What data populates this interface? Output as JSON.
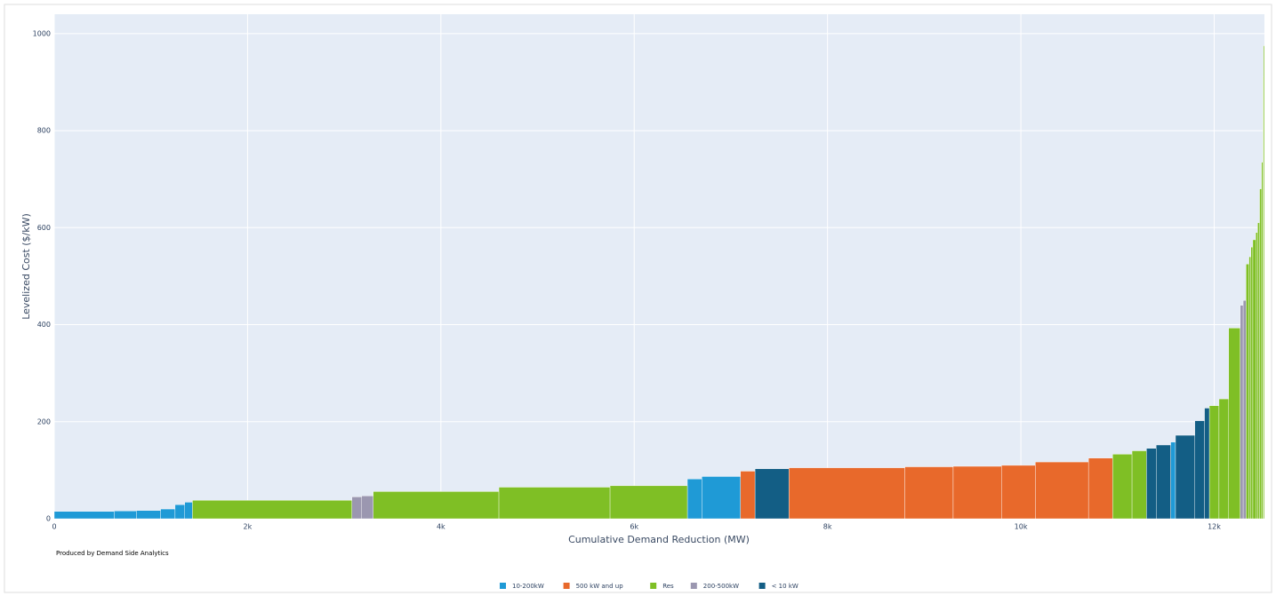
{
  "chart_data": {
    "type": "bar",
    "x_label": "Cumulative Demand Reduction (MW)",
    "y_label": "Levelized Cost ($/kW)",
    "note": "Produced by Demand Side Analytics",
    "xlim": [
      0,
      12520
    ],
    "ylim": [
      0,
      1040
    ],
    "xticks": [
      0,
      {
        "value": 2000,
        "label": "2k"
      },
      {
        "value": 4000,
        "label": "4k"
      },
      {
        "value": 6000,
        "label": "6k"
      },
      {
        "value": 8000,
        "label": "8k"
      },
      {
        "value": 10000,
        "label": "10k"
      },
      {
        "value": 12000,
        "label": "12k"
      }
    ],
    "yticks": [
      0,
      200,
      400,
      600,
      800,
      1000
    ],
    "grid": true,
    "legend": "bottom",
    "series": [
      {
        "name": "10-200kW",
        "color": "#1f9ad6",
        "x0": [
          0,
          620,
          850,
          1100,
          1250,
          1350,
          6550,
          6700,
          11550
        ],
        "x1": [
          620,
          850,
          1100,
          1250,
          1350,
          1430,
          6700,
          7100,
          11600
        ],
        "values": [
          15,
          16,
          17,
          20,
          29,
          34,
          82,
          87,
          158
        ]
      },
      {
        "name": "500 kW and up",
        "color": "#e8692b",
        "x0": [
          7100,
          7600,
          8800,
          9300,
          9800,
          10150,
          10700
        ],
        "x1": [
          7250,
          8800,
          9300,
          9800,
          10150,
          10700,
          10950
        ],
        "values": [
          98,
          105,
          107,
          108,
          110,
          117,
          125
        ]
      },
      {
        "name": "Res",
        "color": "#7fbf25",
        "x0": [
          1430,
          3300,
          4600,
          5750,
          10950,
          11150,
          11950,
          12050,
          12150,
          12330,
          12360,
          12380,
          12400,
          12430,
          12450,
          12470,
          12490,
          12505,
          12510
        ],
        "x1": [
          3080,
          4600,
          5750,
          6550,
          11150,
          11300,
          12050,
          12150,
          12270,
          12360,
          12380,
          12400,
          12430,
          12450,
          12470,
          12490,
          12505,
          12510,
          12520
        ],
        "values": [
          38,
          56,
          65,
          68,
          133,
          140,
          233,
          247,
          393,
          525,
          540,
          560,
          575,
          590,
          610,
          680,
          735,
          910,
          975
        ]
      },
      {
        "name": "200-500kW",
        "color": "#9b97b0",
        "x0": [
          3080,
          3180,
          12270,
          12300
        ],
        "x1": [
          3180,
          3300,
          12300,
          12330
        ],
        "values": [
          45,
          47,
          440,
          450
        ]
      },
      {
        "name": "< 10 kW",
        "color": "#135e85",
        "x0": [
          7250,
          11300,
          11400,
          11600,
          11800,
          11900
        ],
        "x1": [
          7600,
          11400,
          11550,
          11800,
          11900,
          11950
        ],
        "values": [
          103,
          145,
          152,
          172,
          202,
          228
        ]
      }
    ]
  }
}
